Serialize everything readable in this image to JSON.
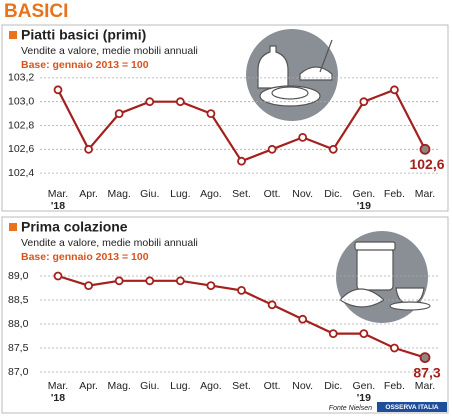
{
  "header": {
    "title": "BASICI"
  },
  "source": "Fonte Nielsen",
  "logo": "OSSERVA ITALIA",
  "chart_data": [
    {
      "type": "line",
      "title": "Piatti basici (primi)",
      "subtitle": "Vendite a valore, medie mobili annuali",
      "note": "Base: gennaio 2013 = 100",
      "categories": [
        "Mar.",
        "Apr.",
        "Mag.",
        "Giu.",
        "Lug.",
        "Ago.",
        "Set.",
        "Ott.",
        "Nov.",
        "Dic.",
        "Gen.",
        "Feb.",
        "Mar."
      ],
      "years": [
        "'18",
        null,
        null,
        null,
        null,
        null,
        null,
        null,
        null,
        null,
        "'19",
        null,
        null
      ],
      "values": [
        103.1,
        102.6,
        102.9,
        103.0,
        103.0,
        102.9,
        102.5,
        102.6,
        102.7,
        102.6,
        103.0,
        103.1,
        102.6
      ],
      "value_labels": [
        null,
        null,
        null,
        null,
        null,
        null,
        null,
        null,
        null,
        null,
        null,
        null,
        "102,6"
      ],
      "color": "#a3201d",
      "ylim": [
        102.3,
        103.3
      ],
      "yticks": [
        {
          "value": 102.4,
          "label": "102,4"
        },
        {
          "value": 102.6,
          "label": "102,6"
        },
        {
          "value": 102.8,
          "label": "102,8"
        },
        {
          "value": 103.0,
          "label": "103,0"
        },
        {
          "value": 103.2,
          "label": "103,2"
        }
      ],
      "grid": true
    },
    {
      "type": "line",
      "title": "Prima colazione",
      "subtitle": "Vendite a valore, medie mobili annuali",
      "note": "Base: gennaio 2013 = 100",
      "categories": [
        "Mar.",
        "Apr.",
        "Mag.",
        "Giu.",
        "Lug.",
        "Ago.",
        "Set.",
        "Ott.",
        "Nov.",
        "Dic.",
        "Gen.",
        "Feb.",
        "Mar."
      ],
      "years": [
        "'18",
        null,
        null,
        null,
        null,
        null,
        null,
        null,
        null,
        null,
        "'19",
        null,
        null
      ],
      "values": [
        89.0,
        88.8,
        88.9,
        88.9,
        88.9,
        88.8,
        88.7,
        88.4,
        88.1,
        87.8,
        87.8,
        87.5,
        87.3
      ],
      "value_labels": [
        null,
        null,
        null,
        null,
        null,
        null,
        null,
        null,
        null,
        null,
        null,
        null,
        "87,3"
      ],
      "color": "#a3201d",
      "ylim": [
        86.8,
        89.2
      ],
      "yticks": [
        {
          "value": 87.0,
          "label": "87,0"
        },
        {
          "value": 87.5,
          "label": "87,5"
        },
        {
          "value": 88.0,
          "label": "88,0"
        },
        {
          "value": 88.5,
          "label": "88,5"
        },
        {
          "value": 89.0,
          "label": "89,0"
        }
      ],
      "grid": true
    }
  ]
}
